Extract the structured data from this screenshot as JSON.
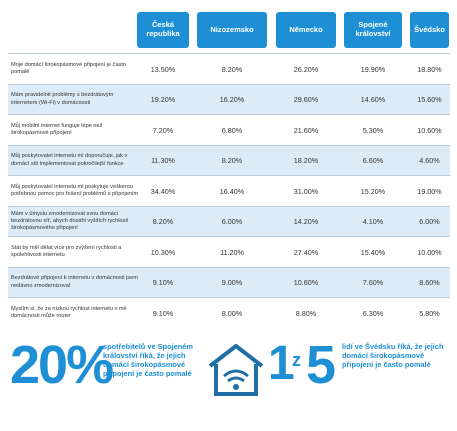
{
  "table": {
    "header": [
      "Česká republika",
      "Nizozemsko",
      "Německo",
      "Spojené království",
      "Švédsko"
    ],
    "rows": [
      [
        "Moje domácí širokopásmové připojení je často pomalé",
        "13.50%",
        "8.20%",
        "26.20%",
        "19.90%",
        "18.80%"
      ],
      [
        "Mám pravidelné problémy s bezdrátovým internetem (Wi-Fi) v domácnosti",
        "19.20%",
        "16.20%",
        "29.60%",
        "14.60%",
        "15.60%"
      ],
      [
        "Můj mobilní internet funguje lépe než širokopásmové připojení",
        "7.20%",
        "6.80%",
        "21.60%",
        "5.30%",
        "10.60%"
      ],
      [
        "Můj poskytovatel internetu mi doporučuje, jak v domácí síti implementovat pokročilejší funkce",
        "11.30%",
        "8.20%",
        "18.20%",
        "6.60%",
        "4.60%"
      ],
      [
        "Můj poskytovatel internetu mi poskytuje veškerou potřebnou pomoc pro řešení problémů s připojením",
        "34.40%",
        "16.40%",
        "31.00%",
        "15.20%",
        "19.00%"
      ],
      [
        "Mám v úmyslu zmodernizovat svou domácí bezdrátovou síť, abych dosáhl vyšších rychlostí širokopásmového připojení",
        "8.20%",
        "6.00%",
        "14.20%",
        "4.10%",
        "6.00%"
      ],
      [
        "Stát by měl dělat více pro zvýšení rychlosti a spolehlivosti internetu",
        "10.30%",
        "11.20%",
        "27.40%",
        "15.40%",
        "10.00%"
      ],
      [
        "Bezdrátové připojení k internetu v domácnosti jsem nedávno zmodernizoval",
        "9.10%",
        "9.00%",
        "10.60%",
        "7.60%",
        "8.60%"
      ],
      [
        "Myslím si, že za nízkou rychlost internetu v mé domácnosti může router",
        "9.10%",
        "8.00%",
        "8.80%",
        "6.30%",
        "5.80%"
      ]
    ]
  },
  "footer": {
    "left": {
      "figure": "20%",
      "text": "spotřebitelů ve Spojeném království říká, že jejich domácí širokopásmové připojení je často pomalé"
    },
    "right": {
      "one": "1",
      "of": "z",
      "five": "5",
      "text": "lidí ve Švédsku říká, že jejich domácí širokopásmové připojení je často pomalé"
    }
  }
}
